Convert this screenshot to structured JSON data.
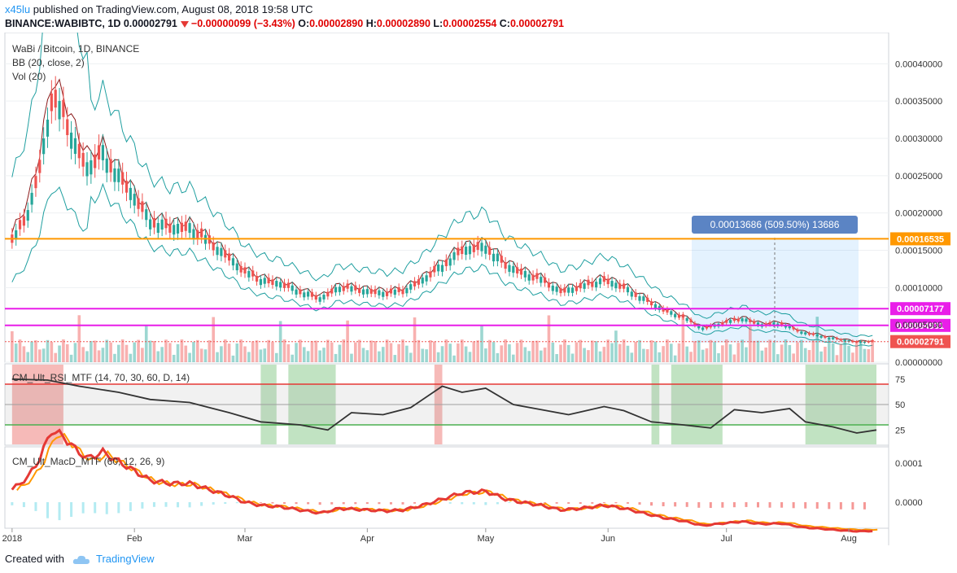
{
  "header": {
    "user": "x45lu",
    "published_text": "published on TradingView.com, August 08, 2018 19:58 UTC",
    "symbol": "BINANCE:WABIBTC, 1D",
    "last": "0.00002791",
    "change": "−0.00000099 (−3.43%)",
    "o_label": "O:",
    "o_value": "0.00002890",
    "h_label": "H:",
    "h_value": "0.00002890",
    "l_label": "L:",
    "l_value": "0.00002554",
    "c_label": "C:",
    "c_value": "0.00002791"
  },
  "legend": {
    "title": "WaBi / Bitcoin, 1D, BINANCE",
    "bb": "BB (20, close, 2)",
    "vol": "Vol (20)",
    "rsi": "CM_Ult_RSI_MTF (14, 70, 30, 60, D, 14)",
    "macd": "CM_Ult_MacD_MTF (60, 12, 26, 9)"
  },
  "measure_label": "0.00013686 (509.50%) 13686",
  "footer": {
    "created": "Created with",
    "brand": "TradingView"
  },
  "colors": {
    "up": "#26a69a",
    "down": "#ef5350",
    "support": "#ff9800",
    "level": "#e91ee9",
    "bb": "#1f9fa0",
    "basis": "#8b1a1a"
  },
  "chart_data": {
    "type": "candlestick",
    "x_ticks": [
      "2018",
      "Feb",
      "Mar",
      "Apr",
      "May",
      "Jun",
      "Jul",
      "Aug"
    ],
    "price_axis": {
      "ticks": [
        "0.00040000",
        "0.00035000",
        "0.00030000",
        "0.00025000",
        "0.00020000",
        "0.00015000",
        "0.00010000",
        "0.00005000",
        "0.00000000"
      ],
      "ylim": [
        0,
        0.00042
      ]
    },
    "horizontal_levels": [
      {
        "label": "0.00016535",
        "value": 0.00016535,
        "color": "#ff9800"
      },
      {
        "label": "0.00007177",
        "value": 7.177e-05,
        "color": "#e91ee9"
      },
      {
        "label": "0.00004931",
        "value": 4.931e-05,
        "color": "#e91ee9"
      }
    ],
    "last_price_label": "0.00002791",
    "close_path": [
      [
        "2018-01-01",
        0.00016
      ],
      [
        "2018-01-05",
        0.0002
      ],
      [
        "2018-01-08",
        0.00026
      ],
      [
        "2018-01-11",
        0.00035
      ],
      [
        "2018-01-14",
        0.00033
      ],
      [
        "2018-01-17",
        0.00029
      ],
      [
        "2018-01-20",
        0.00026
      ],
      [
        "2018-01-24",
        0.00028
      ],
      [
        "2018-01-28",
        0.00025
      ],
      [
        "2018-02-01",
        0.00022
      ],
      [
        "2018-02-05",
        0.00019
      ],
      [
        "2018-02-10",
        0.00018
      ],
      [
        "2018-02-15",
        0.00018
      ],
      [
        "2018-02-20",
        0.00016
      ],
      [
        "2018-02-25",
        0.00014
      ],
      [
        "2018-03-01",
        0.00012
      ],
      [
        "2018-03-05",
        0.00011
      ],
      [
        "2018-03-10",
        0.000105
      ],
      [
        "2018-03-15",
        9.5e-05
      ],
      [
        "2018-03-20",
        8.5e-05
      ],
      [
        "2018-03-25",
        0.0001
      ],
      [
        "2018-04-01",
        9.5e-05
      ],
      [
        "2018-04-06",
        9.2e-05
      ],
      [
        "2018-04-10",
        9.5e-05
      ],
      [
        "2018-04-15",
        0.00011
      ],
      [
        "2018-04-20",
        0.00013
      ],
      [
        "2018-04-25",
        0.00015
      ],
      [
        "2018-05-01",
        0.000155
      ],
      [
        "2018-05-06",
        0.00013
      ],
      [
        "2018-05-10",
        0.00012
      ],
      [
        "2018-05-15",
        0.00011
      ],
      [
        "2018-05-20",
        9.5e-05
      ],
      [
        "2018-05-25",
        0.0001
      ],
      [
        "2018-05-31",
        0.00011
      ],
      [
        "2018-06-05",
        0.0001
      ],
      [
        "2018-06-10",
        8.5e-05
      ],
      [
        "2018-06-15",
        7e-05
      ],
      [
        "2018-06-20",
        6e-05
      ],
      [
        "2018-06-25",
        4.5e-05
      ],
      [
        "2018-06-30",
        5.2e-05
      ],
      [
        "2018-07-05",
        5.8e-05
      ],
      [
        "2018-07-10",
        5e-05
      ],
      [
        "2018-07-15",
        5.2e-05
      ],
      [
        "2018-07-20",
        4e-05
      ],
      [
        "2018-07-25",
        3.5e-05
      ],
      [
        "2018-07-30",
        3e-05
      ],
      [
        "2018-08-03",
        2.7e-05
      ],
      [
        "2018-08-08",
        2.791e-05
      ]
    ],
    "rsi": {
      "ticks": [
        "75",
        "50",
        "25"
      ],
      "levels": [
        70,
        50,
        30
      ],
      "path": [
        [
          "2018-01-01",
          75
        ],
        [
          "2018-01-10",
          74
        ],
        [
          "2018-01-18",
          68
        ],
        [
          "2018-01-28",
          62
        ],
        [
          "2018-02-05",
          55
        ],
        [
          "2018-02-15",
          52
        ],
        [
          "2018-02-25",
          42
        ],
        [
          "2018-03-05",
          33
        ],
        [
          "2018-03-15",
          30
        ],
        [
          "2018-03-22",
          25
        ],
        [
          "2018-03-28",
          42
        ],
        [
          "2018-04-05",
          40
        ],
        [
          "2018-04-12",
          47
        ],
        [
          "2018-04-20",
          68
        ],
        [
          "2018-04-25",
          62
        ],
        [
          "2018-05-01",
          66
        ],
        [
          "2018-05-08",
          50
        ],
        [
          "2018-05-15",
          45
        ],
        [
          "2018-05-22",
          40
        ],
        [
          "2018-05-31",
          48
        ],
        [
          "2018-06-05",
          44
        ],
        [
          "2018-06-12",
          33
        ],
        [
          "2018-06-20",
          30
        ],
        [
          "2018-06-27",
          27
        ],
        [
          "2018-07-03",
          45
        ],
        [
          "2018-07-10",
          42
        ],
        [
          "2018-07-17",
          46
        ],
        [
          "2018-07-21",
          33
        ],
        [
          "2018-07-28",
          28
        ],
        [
          "2018-08-03",
          22
        ],
        [
          "2018-08-08",
          25
        ]
      ]
    },
    "macd": {
      "ticks": [
        "0.0001",
        "0.0000"
      ]
    }
  }
}
